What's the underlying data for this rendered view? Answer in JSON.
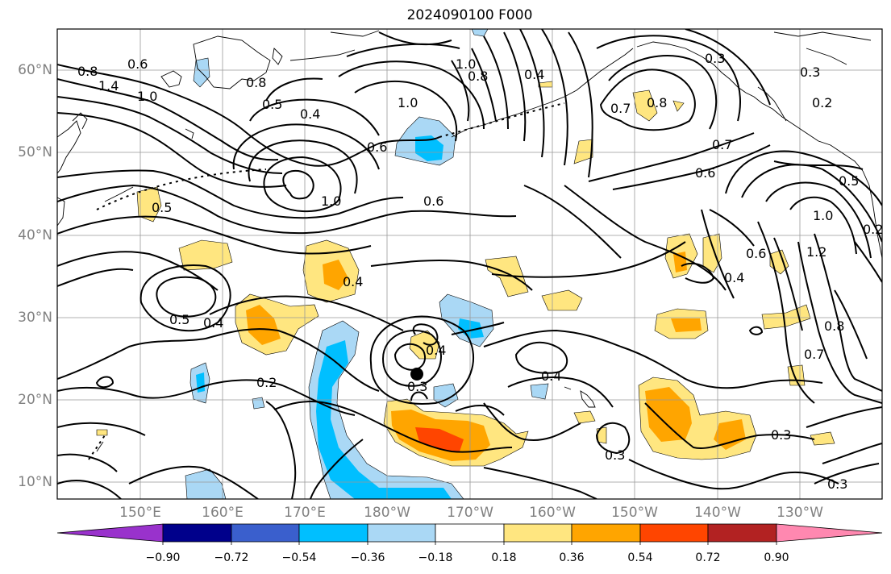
{
  "title": "2024090100 F000",
  "lat_labels": [
    "60°N",
    "50°N",
    "40°N",
    "30°N",
    "20°N",
    "10°N"
  ],
  "lon_labels": [
    "150°E",
    "160°E",
    "170°E",
    "180°W",
    "170°W",
    "160°W",
    "150°W",
    "140°W",
    "130°W"
  ],
  "colorbar": {
    "ticks": [
      "−0.90",
      "−0.72",
      "−0.54",
      "−0.36",
      "−0.18",
      "0.18",
      "0.36",
      "0.54",
      "0.72",
      "0.90"
    ],
    "colors": [
      "#9932cc",
      "#00008b",
      "#3a5fcd",
      "#00bfff",
      "#aad8f5",
      "#ffffff",
      "#ffe680",
      "#ffa500",
      "#ff4500",
      "#b22222",
      "#ff88b0"
    ]
  },
  "contour_labels": [
    {
      "text": "0.8"
    },
    {
      "text": "0.6"
    },
    {
      "text": "1.4"
    },
    {
      "text": "1.0"
    },
    {
      "text": "0.8"
    },
    {
      "text": "0.5"
    },
    {
      "text": "0.4"
    },
    {
      "text": "1.0"
    },
    {
      "text": "0.6"
    },
    {
      "text": "1.0"
    },
    {
      "text": "0.8"
    },
    {
      "text": "0.4"
    },
    {
      "text": "0.3"
    },
    {
      "text": "0.3"
    },
    {
      "text": "0.2"
    },
    {
      "text": "0.8"
    },
    {
      "text": "0.7"
    },
    {
      "text": "0.7"
    },
    {
      "text": "0.6"
    },
    {
      "text": "0.5"
    },
    {
      "text": "1.0"
    },
    {
      "text": "1.2"
    },
    {
      "text": "0.6"
    },
    {
      "text": "0.2"
    },
    {
      "text": "0.5"
    },
    {
      "text": "0.6"
    },
    {
      "text": "1.0"
    },
    {
      "text": "0.4"
    },
    {
      "text": "0.5"
    },
    {
      "text": "0.4"
    },
    {
      "text": "0.2"
    },
    {
      "text": "0.4"
    },
    {
      "text": "0.4"
    },
    {
      "text": "0.3"
    },
    {
      "text": "0.4"
    },
    {
      "text": "0.8"
    },
    {
      "text": "0.7"
    },
    {
      "text": "0.3"
    },
    {
      "text": "0.3"
    },
    {
      "text": "0.3"
    }
  ]
}
